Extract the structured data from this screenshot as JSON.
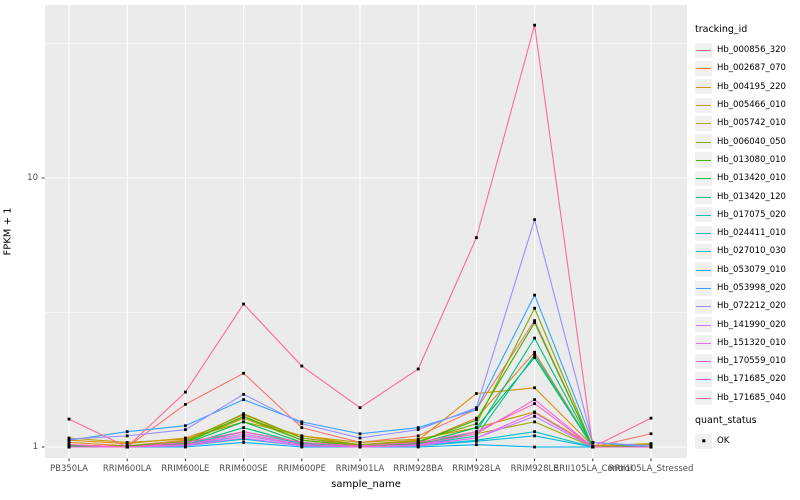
{
  "axes": {
    "x_label": "sample_name",
    "y_label": "FPKM + 1",
    "y_tick_labels": [
      "1",
      "10"
    ]
  },
  "legend": {
    "tracking_title": "tracking_id",
    "quant_title": "quant_status",
    "quant_item_label": "OK"
  },
  "theme": {
    "panel_bg": "#ebebeb",
    "grid_color": "#ffffff",
    "tick_mark_color": "#333333",
    "tick_text_color": "#4d4d4d",
    "marker_color": "#000000",
    "key_bg": "#f0f0f0"
  },
  "chart_data": {
    "type": "line",
    "title": "",
    "xlabel": "sample_name",
    "ylabel": "FPKM + 1",
    "y_scale": "log10",
    "ylim": [
      0.93,
      44
    ],
    "y_major_ticks": [
      1,
      10
    ],
    "y_minor_gridlines": [
      3.162,
      31.62
    ],
    "grid": true,
    "legend_position": "right",
    "marker": {
      "shape": "square",
      "color": "#000000",
      "status_label": "OK"
    },
    "categories": [
      "PB350LA",
      "RRIM600LA",
      "RRIM600LE",
      "RRIM600SE",
      "RRIM600PE",
      "RRIM901LA",
      "RRIM928BA",
      "RRIM928LA",
      "RRIM928LE",
      "RRII105LA_Control",
      "RRII105LA_Stressed"
    ],
    "series": [
      {
        "name": "Hb_000856_320",
        "color": "#F8766D",
        "values": [
          1.02,
          1.0,
          1.44,
          1.88,
          1.18,
          1.04,
          1.1,
          1.38,
          2.95,
          1.0,
          1.12
        ]
      },
      {
        "name": "Hb_002687_070",
        "color": "#EA8331",
        "values": [
          1.04,
          1.01,
          1.06,
          1.32,
          1.08,
          1.01,
          1.04,
          1.28,
          2.25,
          1.0,
          1.01
        ]
      },
      {
        "name": "Hb_004195_220",
        "color": "#D89000",
        "values": [
          1.06,
          1.03,
          1.08,
          1.28,
          1.1,
          1.02,
          1.06,
          1.58,
          1.66,
          1.01,
          1.02
        ]
      },
      {
        "name": "Hb_005466_010",
        "color": "#C09B00",
        "values": [
          1.08,
          1.04,
          1.07,
          1.24,
          1.1,
          1.04,
          1.07,
          1.18,
          1.35,
          1.01,
          1.03
        ]
      },
      {
        "name": "Hb_005742_010",
        "color": "#A3A500",
        "values": [
          1.02,
          1.0,
          1.04,
          1.28,
          1.06,
          1.01,
          1.03,
          1.12,
          1.24,
          1.0,
          1.01
        ]
      },
      {
        "name": "Hb_006040_050",
        "color": "#7CAE00",
        "values": [
          1.01,
          1.0,
          1.05,
          1.33,
          1.08,
          1.02,
          1.05,
          1.22,
          3.28,
          1.0,
          1.02
        ]
      },
      {
        "name": "Hb_013080_010",
        "color": "#39B600",
        "values": [
          1.0,
          1.01,
          1.04,
          1.3,
          1.06,
          1.01,
          1.04,
          1.26,
          2.9,
          1.0,
          1.01
        ]
      },
      {
        "name": "Hb_013420_010",
        "color": "#00BB4E",
        "values": [
          1.01,
          1.0,
          1.03,
          1.24,
          1.04,
          1.0,
          1.03,
          1.18,
          2.15,
          1.0,
          1.0
        ]
      },
      {
        "name": "Hb_013420_120",
        "color": "#00BF7D",
        "values": [
          1.0,
          1.0,
          1.02,
          1.18,
          1.03,
          1.0,
          1.02,
          1.14,
          2.54,
          1.0,
          1.0
        ]
      },
      {
        "name": "Hb_017075_020",
        "color": "#00C1A3",
        "values": [
          1.0,
          1.0,
          1.02,
          1.14,
          1.03,
          1.0,
          1.02,
          1.1,
          2.2,
          1.0,
          1.0
        ]
      },
      {
        "name": "Hb_024411_010",
        "color": "#00BFC4",
        "values": [
          1.0,
          1.0,
          1.01,
          1.1,
          1.02,
          1.0,
          1.01,
          1.06,
          1.14,
          1.0,
          1.0
        ]
      },
      {
        "name": "Hb_027010_030",
        "color": "#00BAE0",
        "values": [
          1.0,
          1.0,
          1.01,
          1.07,
          1.01,
          1.0,
          1.01,
          1.05,
          1.1,
          1.0,
          1.0
        ]
      },
      {
        "name": "Hb_053079_010",
        "color": "#00B0F6",
        "values": [
          1.0,
          1.0,
          1.0,
          1.04,
          1.0,
          1.0,
          1.0,
          1.02,
          1.0,
          1.0,
          1.0
        ]
      },
      {
        "name": "Hb_053998_020",
        "color": "#35A2FF",
        "values": [
          1.06,
          1.14,
          1.2,
          1.5,
          1.24,
          1.12,
          1.18,
          1.38,
          3.67,
          1.04,
          1.0
        ]
      },
      {
        "name": "Hb_072212_020",
        "color": "#9590FF",
        "values": [
          1.07,
          1.1,
          1.16,
          1.57,
          1.22,
          1.08,
          1.16,
          1.4,
          7.0,
          1.04,
          1.01
        ]
      },
      {
        "name": "Hb_141990_020",
        "color": "#C77CFF",
        "values": [
          1.0,
          1.0,
          1.02,
          1.1,
          1.02,
          1.0,
          1.02,
          1.08,
          1.3,
          1.0,
          1.0
        ]
      },
      {
        "name": "Hb_151320_010",
        "color": "#E76BF3",
        "values": [
          1.0,
          1.0,
          1.01,
          1.08,
          1.01,
          1.0,
          1.01,
          1.08,
          1.34,
          1.0,
          1.0
        ]
      },
      {
        "name": "Hb_170559_010",
        "color": "#FA62DB",
        "values": [
          1.0,
          1.0,
          1.02,
          1.12,
          1.02,
          1.0,
          1.02,
          1.12,
          1.5,
          1.0,
          1.0
        ]
      },
      {
        "name": "Hb_171685_020",
        "color": "#FF62BC",
        "values": [
          1.02,
          1.0,
          1.04,
          1.14,
          1.04,
          1.01,
          1.04,
          1.14,
          1.45,
          1.0,
          1.0
        ]
      },
      {
        "name": "Hb_171685_040",
        "color": "#FF6A98",
        "values": [
          1.27,
          1.0,
          1.6,
          3.4,
          2.0,
          1.4,
          1.95,
          6.0,
          37.0,
          1.0,
          1.28
        ]
      }
    ]
  }
}
